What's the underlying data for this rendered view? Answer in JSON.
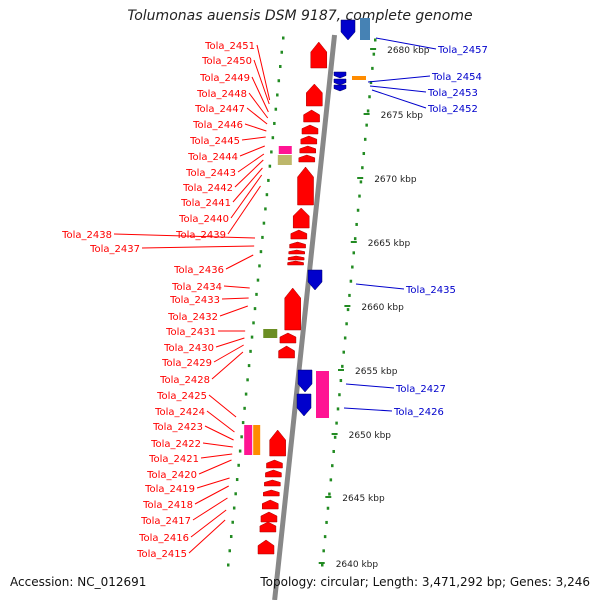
{
  "title": "Tolumonas auensis DSM 9187, complete genome",
  "accession": "Accession: NC_012691",
  "topology": "Topology: circular; Length: 3,471,292 bp; Genes: 3,246",
  "scale_labels": [
    "2680 kbp",
    "2675 kbp",
    "2670 kbp",
    "2665 kbp",
    "2660 kbp",
    "2655 kbp",
    "2650 kbp",
    "2645 kbp",
    "2640 kbp"
  ],
  "reverse_labels": [
    "Tola_2451",
    "Tola_2450",
    "Tola_2449",
    "Tola_2448",
    "Tola_2447",
    "Tola_2446",
    "Tola_2445",
    "Tola_2444",
    "Tola_2443",
    "Tola_2442",
    "Tola_2441",
    "Tola_2440",
    "Tola_2439",
    "Tola_2438",
    "Tola_2437",
    "Tola_2436",
    "Tola_2434",
    "Tola_2433",
    "Tola_2432",
    "Tola_2431",
    "Tola_2430",
    "Tola_2429",
    "Tola_2428",
    "Tola_2425",
    "Tola_2424",
    "Tola_2423",
    "Tola_2422",
    "Tola_2421",
    "Tola_2420",
    "Tola_2419",
    "Tola_2418",
    "Tola_2417",
    "Tola_2416",
    "Tola_2415"
  ],
  "forward_labels": [
    "Tola_2457",
    "Tola_2454",
    "Tola_2453",
    "Tola_2452",
    "Tola_2435",
    "Tola_2427",
    "Tola_2426"
  ],
  "colors": {
    "reverse": "#ff0000",
    "forward": "#0000cc",
    "backbone": "#888888",
    "tick": "#228b22",
    "magenta": "#ff1493",
    "orange": "#ff8c00",
    "khaki": "#bdb76b",
    "olive": "#6b8e23",
    "steel": "#4682b4"
  }
}
